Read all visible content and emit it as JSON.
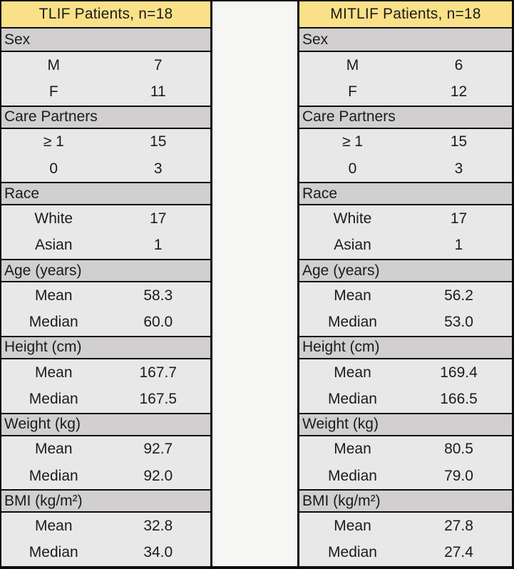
{
  "chart_data": [
    {
      "type": "table",
      "title": "TLIF Patients, n=18",
      "sections": [
        {
          "header": "Sex",
          "rows": [
            {
              "label": "M",
              "value": "7"
            },
            {
              "label": "F",
              "value": "11"
            }
          ]
        },
        {
          "header": "Care Partners",
          "rows": [
            {
              "label": "≥ 1",
              "value": "15"
            },
            {
              "label": "0",
              "value": "3"
            }
          ]
        },
        {
          "header": "Race",
          "rows": [
            {
              "label": "White",
              "value": "17"
            },
            {
              "label": "Asian",
              "value": "1"
            }
          ]
        },
        {
          "header": "Age (years)",
          "rows": [
            {
              "label": "Mean",
              "value": "58.3"
            },
            {
              "label": "Median",
              "value": "60.0"
            }
          ]
        },
        {
          "header": "Height (cm)",
          "rows": [
            {
              "label": "Mean",
              "value": "167.7"
            },
            {
              "label": "Median",
              "value": "167.5"
            }
          ]
        },
        {
          "header": "Weight (kg)",
          "rows": [
            {
              "label": "Mean",
              "value": "92.7"
            },
            {
              "label": "Median",
              "value": "92.0"
            }
          ]
        },
        {
          "header": "BMI (kg/m²)",
          "rows": [
            {
              "label": "Mean",
              "value": "32.8"
            },
            {
              "label": "Median",
              "value": "34.0"
            }
          ]
        }
      ]
    },
    {
      "type": "table",
      "title": "MITLIF Patients, n=18",
      "sections": [
        {
          "header": "Sex",
          "rows": [
            {
              "label": "M",
              "value": "6"
            },
            {
              "label": "F",
              "value": "12"
            }
          ]
        },
        {
          "header": "Care Partners",
          "rows": [
            {
              "label": "≥ 1",
              "value": "15"
            },
            {
              "label": "0",
              "value": "3"
            }
          ]
        },
        {
          "header": "Race",
          "rows": [
            {
              "label": "White",
              "value": "17"
            },
            {
              "label": "Asian",
              "value": "1"
            }
          ]
        },
        {
          "header": "Age (years)",
          "rows": [
            {
              "label": "Mean",
              "value": "56.2"
            },
            {
              "label": "Median",
              "value": "53.0"
            }
          ]
        },
        {
          "header": "Height (cm)",
          "rows": [
            {
              "label": "Mean",
              "value": "169.4"
            },
            {
              "label": "Median",
              "value": "166.5"
            }
          ]
        },
        {
          "header": "Weight (kg)",
          "rows": [
            {
              "label": "Mean",
              "value": "80.5"
            },
            {
              "label": "Median",
              "value": "79.0"
            }
          ]
        },
        {
          "header": "BMI (kg/m²)",
          "rows": [
            {
              "label": "Mean",
              "value": "27.8"
            },
            {
              "label": "Median",
              "value": "27.4"
            }
          ]
        }
      ]
    }
  ],
  "colors": {
    "title_bg": "#FAE189",
    "section_bg": "#D1CFCF",
    "row_bg": "#E9E8E8",
    "gap_bg": "#F6F6F5",
    "border": "#0D0D0D",
    "text": "#1B1B1B"
  }
}
